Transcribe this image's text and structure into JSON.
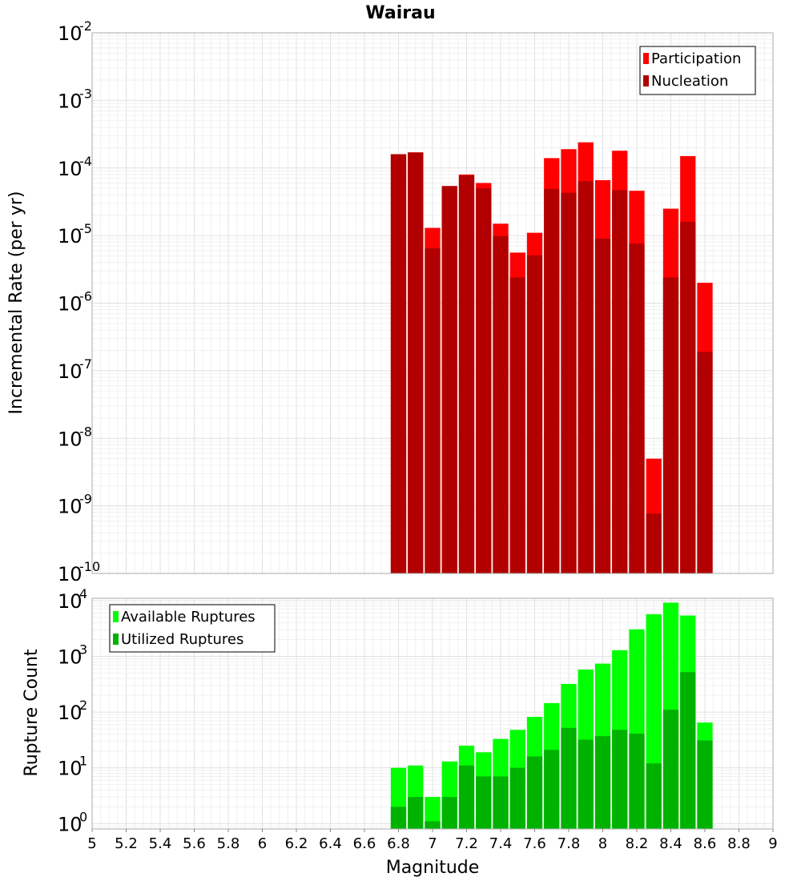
{
  "chart_data": [
    {
      "type": "bar",
      "panel": "top",
      "title": "Wairau",
      "ylabel": "Incremental Rate (per yr)",
      "xlabel": "",
      "yscale": "log",
      "ylim": [
        1e-10,
        0.01
      ],
      "xlim": [
        5,
        9
      ],
      "ytick_exponents": [
        -10,
        -9,
        -8,
        -7,
        -6,
        -5,
        -4,
        -3,
        -2
      ],
      "legend_position": "top-right",
      "x": [
        6.8,
        6.9,
        7.0,
        7.1,
        7.2,
        7.3,
        7.4,
        7.5,
        7.6,
        7.7,
        7.8,
        7.9,
        8.0,
        8.1,
        8.2,
        8.3,
        8.4,
        8.5,
        8.6
      ],
      "series": [
        {
          "name": "Participation",
          "color": "#ff0000",
          "values": [
            0.00016,
            0.00017,
            1.3e-05,
            5.4e-05,
            8e-05,
            6e-05,
            1.5e-05,
            5.6e-06,
            1.1e-05,
            0.00014,
            0.00019,
            0.00024,
            6.6e-05,
            0.00018,
            4.6e-05,
            5e-09,
            2.5e-05,
            0.00015,
            2e-06
          ]
        },
        {
          "name": "Nucleation",
          "color": "#b20000",
          "values": [
            0.00016,
            0.00017,
            6.5e-06,
            5.4e-05,
            7.8e-05,
            5e-05,
            9.8e-06,
            2.4e-06,
            5.1e-06,
            4.9e-05,
            4.3e-05,
            6.4e-05,
            9e-06,
            4.7e-05,
            7.6e-06,
            7.7e-10,
            2.4e-06,
            1.6e-05,
            1.9e-07
          ]
        }
      ]
    },
    {
      "type": "bar",
      "panel": "bottom",
      "title": "",
      "ylabel": "Rupture Count",
      "xlabel": "Magnitude",
      "yscale": "log",
      "ylim": [
        0.8,
        11000
      ],
      "xlim": [
        5,
        9
      ],
      "ytick_exponents": [
        0,
        1,
        2,
        3,
        4
      ],
      "xticks": [
        "5",
        "5.2",
        "5.4",
        "5.6",
        "5.8",
        "6",
        "6.2",
        "6.4",
        "6.6",
        "6.8",
        "7",
        "7.2",
        "7.4",
        "7.6",
        "7.8",
        "8",
        "8.2",
        "8.4",
        "8.6",
        "8.8",
        "9"
      ],
      "legend_position": "top-left",
      "x": [
        6.8,
        6.9,
        7.0,
        7.1,
        7.2,
        7.3,
        7.4,
        7.5,
        7.6,
        7.7,
        7.8,
        7.9,
        8.0,
        8.1,
        8.2,
        8.3,
        8.4,
        8.5,
        8.6
      ],
      "series": [
        {
          "name": "Available Ruptures",
          "color": "#00ff00",
          "values": [
            10,
            11,
            3,
            13,
            25,
            19,
            33,
            48,
            82,
            145,
            320,
            580,
            740,
            1290,
            3050,
            5700,
            9200,
            5400,
            65
          ]
        },
        {
          "name": "Utilized Ruptures",
          "color": "#00b200",
          "values": [
            2,
            3,
            1.1,
            3,
            11,
            7,
            7,
            10,
            16,
            21,
            52,
            32,
            37,
            48,
            41,
            12,
            110,
            520,
            31
          ]
        }
      ]
    }
  ]
}
